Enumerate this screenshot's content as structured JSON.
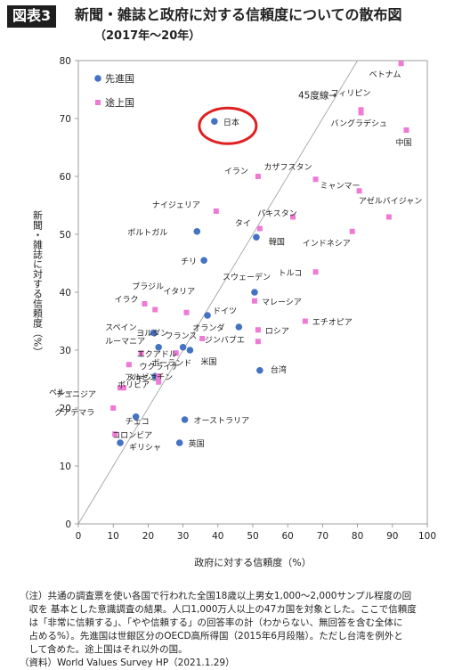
{
  "header": {
    "badge": "図表3",
    "title": "新聞・雑誌と政府に対する信頼度についての散布図",
    "subtitle": "（2017年〜20年）"
  },
  "chart_data": {
    "type": "scatter",
    "xlabel": "政府に対する信頼度（%）",
    "ylabel": "新聞・雑誌に対する信頼度（%）",
    "xlim": [
      0,
      100
    ],
    "ylim": [
      0,
      80
    ],
    "xticks": [
      0,
      10,
      20,
      30,
      40,
      50,
      60,
      70,
      80,
      90,
      100
    ],
    "yticks": [
      0,
      10,
      20,
      30,
      40,
      50,
      60,
      70,
      80
    ],
    "grid": false,
    "legend_position": "top-left",
    "reference_line": {
      "label": "45度線→",
      "from": [
        0,
        0
      ],
      "to": [
        80,
        80
      ]
    },
    "highlight": {
      "label": "日本",
      "shape": "red-ellipse"
    },
    "series": [
      {
        "name": "先進国",
        "color": "#4472c4",
        "marker": "circle",
        "points": [
          {
            "label": "日本",
            "x": 39,
            "y": 69.5
          },
          {
            "label": "ポルトガル",
            "x": 34,
            "y": 50.5
          },
          {
            "label": "韓国",
            "x": 51,
            "y": 49.5
          },
          {
            "label": "チリ",
            "x": 36,
            "y": 45.5
          },
          {
            "label": "スウェーデン",
            "x": 50.5,
            "y": 40
          },
          {
            "label": "スペイン",
            "x": 21.5,
            "y": 33
          },
          {
            "label": "ドイツ",
            "x": 37,
            "y": 36
          },
          {
            "label": "オランダ",
            "x": 46,
            "y": 34
          },
          {
            "label": "フランス",
            "x": 30,
            "y": 30.5
          },
          {
            "label": "米国",
            "x": 32,
            "y": 30
          },
          {
            "label": "台湾",
            "x": 52,
            "y": 26.5
          },
          {
            "label": "ルーマニア",
            "x": 23,
            "y": 30.5
          },
          {
            "label": "ポーランド",
            "x": 22,
            "y": 25.5
          },
          {
            "label": "チェコ",
            "x": 16.5,
            "y": 18.5
          },
          {
            "label": "オーストラリア",
            "x": 30.5,
            "y": 18
          },
          {
            "label": "ギリシャ",
            "x": 12,
            "y": 14
          },
          {
            "label": "英国",
            "x": 29,
            "y": 14
          }
        ]
      },
      {
        "name": "途上国",
        "color": "#ee7ad6",
        "marker": "square",
        "points": [
          {
            "label": "ベトナム",
            "x": 92.5,
            "y": 79.5
          },
          {
            "label": "フィリピン",
            "x": 81,
            "y": 71.5
          },
          {
            "label": "バングラデシュ",
            "x": 81,
            "y": 71
          },
          {
            "label": "中国",
            "x": 94,
            "y": 68
          },
          {
            "label": "イラン",
            "x": 51.5,
            "y": 60
          },
          {
            "label": "カザフスタン",
            "x": 68,
            "y": 59.5
          },
          {
            "label": "ミャンマー",
            "x": 80.5,
            "y": 57.5
          },
          {
            "label": "ナイジェリア",
            "x": 39.5,
            "y": 54
          },
          {
            "label": "パキスタン",
            "x": 61.5,
            "y": 53
          },
          {
            "label": "アゼルバイジャン",
            "x": 89,
            "y": 53
          },
          {
            "label": "タイ",
            "x": 52,
            "y": 51
          },
          {
            "label": "インドネシア",
            "x": 78.5,
            "y": 50.5
          },
          {
            "label": "トルコ",
            "x": 68,
            "y": 43.5
          },
          {
            "label": "イラク",
            "x": 19,
            "y": 38
          },
          {
            "label": "ブラジル",
            "x": 22,
            "y": 37
          },
          {
            "label": "マレーシア",
            "x": 50.5,
            "y": 38.5
          },
          {
            "label": "イタリア",
            "x": 31,
            "y": 36.5
          },
          {
            "label": "エチオピア",
            "x": 65,
            "y": 35
          },
          {
            "label": "ロシア",
            "x": 51.5,
            "y": 33.5
          },
          {
            "label": "ジンバブエ",
            "x": 51.5,
            "y": 31.5
          },
          {
            "label": "ヨルダン",
            "x": 35.5,
            "y": 32
          },
          {
            "label": "ウクライナ",
            "x": 18,
            "y": 29.5
          },
          {
            "label": "エクアドル",
            "x": 28,
            "y": 29.5
          },
          {
            "label": "メキシコ",
            "x": 14.5,
            "y": 27.5
          },
          {
            "label": "アルゼンチン",
            "x": 23,
            "y": 25.5
          },
          {
            "label": "ペルー",
            "x": 12,
            "y": 23.5
          },
          {
            "label": "チュニジア",
            "x": 13,
            "y": 23.5
          },
          {
            "label": "ボリビア",
            "x": 23,
            "y": 24.5
          },
          {
            "label": "グアテマラ",
            "x": 10,
            "y": 20
          },
          {
            "label": "コロンビア",
            "x": 10.5,
            "y": 15.5
          }
        ]
      }
    ]
  },
  "notes": {
    "lines": [
      "（注）共通の調査票を使い各国で行われた全国18歳以上男女1,000〜2,000サンプル程度の回",
      "　収を 基本とした意識調査の結果。人口1,000万人以上の47カ国を対象とした。ここで信頼度",
      "　は「非常に信頼する」、「やや信頼する」の回答率の計（わからない、無回答を含む全体に",
      "　占める%）。先進国は世銀区分のOECD高所得国（2015年6月段階）。ただし台湾を例外と",
      "　して含めた。途上国はそれ以外の国。"
    ],
    "source": "（資料）World Values Survey HP（2021.1.29）"
  }
}
